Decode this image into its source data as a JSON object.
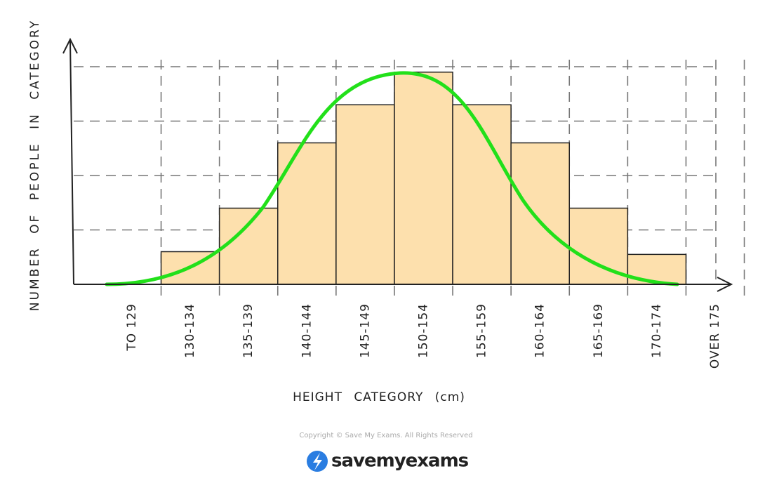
{
  "chart_data": {
    "type": "bar",
    "x_label": "HEIGHT CATEGORY (cm)",
    "y_label": "NUMBER OF PEOPLE IN CATEGORY",
    "categories": [
      "TO 129",
      "130-134",
      "135-139",
      "140-144",
      "145-149",
      "150-154",
      "155-159",
      "160-164",
      "165-169",
      "170-174",
      "OVER 175"
    ],
    "values": [
      0,
      0.6,
      1.4,
      2.6,
      3.3,
      3.9,
      3.3,
      2.6,
      1.4,
      0.55,
      0
    ],
    "color": "#fde0ad",
    "ylim": [
      0,
      4.3
    ],
    "yticks": [
      0,
      1,
      2,
      3,
      4
    ],
    "grid": true
  },
  "footer": {
    "copyright": "Copyright © Save My Exams. All Rights Reserved",
    "brand": "savemyexams"
  }
}
